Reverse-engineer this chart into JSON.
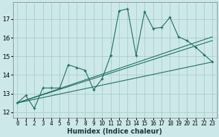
{
  "xlabel": "Humidex (Indice chaleur)",
  "bg_color": "#cce8e8",
  "grid_color": "#aacccc",
  "line_color": "#1a6b5a",
  "xlim": [
    -0.5,
    23.5
  ],
  "ylim": [
    11.7,
    17.9
  ],
  "yticks": [
    12,
    13,
    14,
    15,
    16,
    17
  ],
  "xticks": [
    0,
    1,
    2,
    3,
    4,
    5,
    6,
    7,
    8,
    9,
    10,
    11,
    12,
    13,
    14,
    15,
    16,
    17,
    18,
    19,
    20,
    21,
    22,
    23
  ],
  "main_x": [
    0,
    1,
    2,
    3,
    4,
    5,
    6,
    7,
    8,
    9,
    10,
    11,
    12,
    13,
    14,
    15,
    16,
    17,
    18,
    19,
    20,
    21,
    22,
    23
  ],
  "main_y": [
    12.5,
    12.9,
    12.2,
    13.3,
    13.3,
    13.3,
    14.55,
    14.4,
    14.25,
    13.2,
    13.8,
    15.05,
    17.45,
    17.55,
    15.05,
    17.4,
    16.5,
    16.55,
    17.1,
    16.05,
    15.85,
    15.5,
    15.1,
    14.7
  ],
  "line1_x": [
    0,
    23
  ],
  "line1_y": [
    12.5,
    14.7
  ],
  "line2_x": [
    0,
    23
  ],
  "line2_y": [
    12.5,
    15.85
  ],
  "line3_x": [
    0,
    23
  ],
  "line3_y": [
    12.5,
    16.05
  ]
}
